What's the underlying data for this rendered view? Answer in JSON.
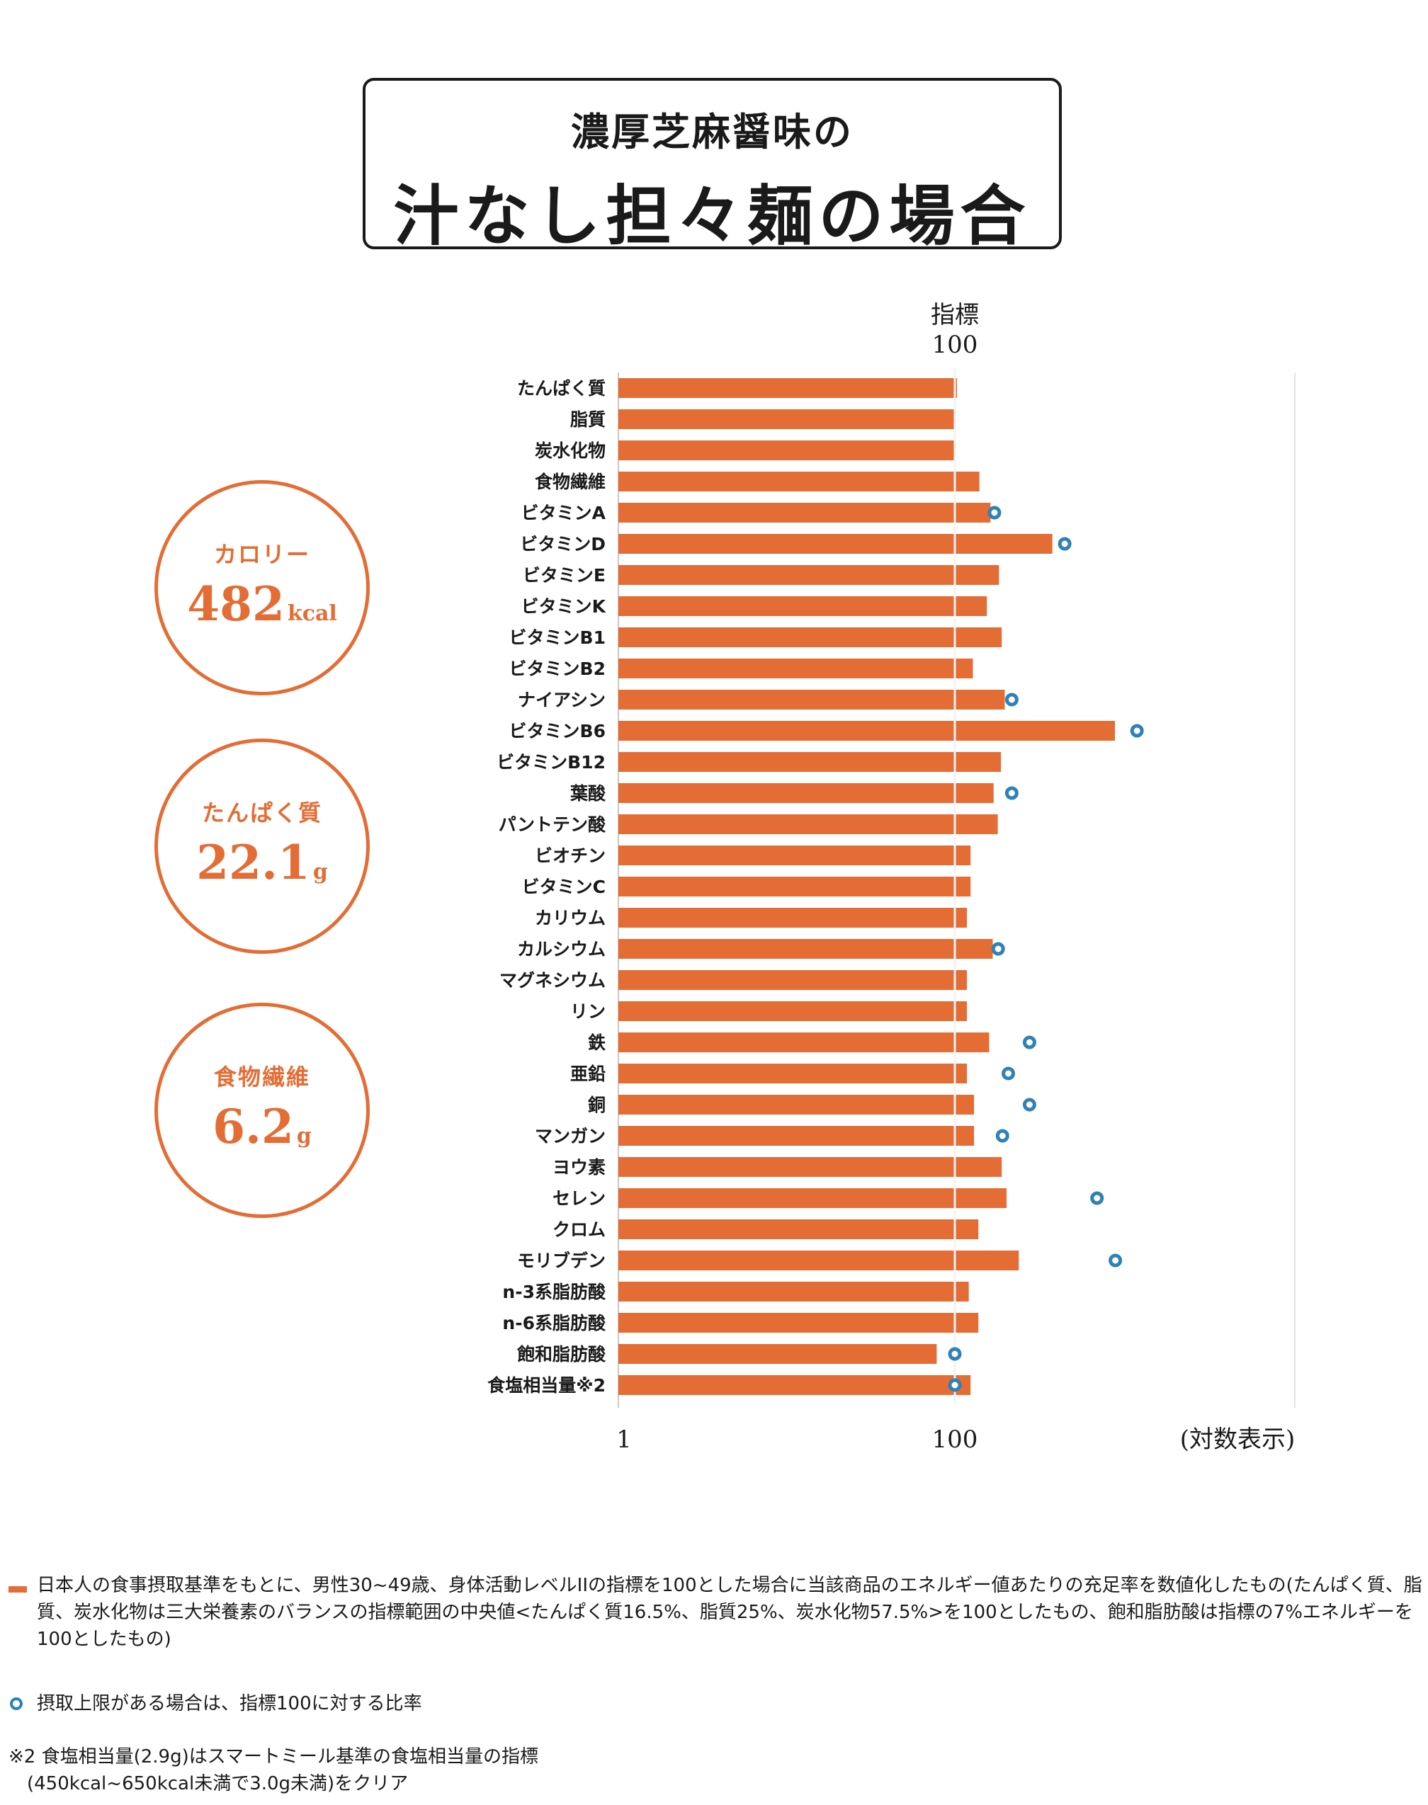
{
  "title": {
    "line1": "濃厚芝麻醤味の",
    "line2": "汁なし担々麺の場合"
  },
  "summary": [
    {
      "label": "カロリー",
      "value": "482",
      "unit": "kcal"
    },
    {
      "label": "たんぱく質",
      "value": "22.1",
      "unit": "g"
    },
    {
      "label": "食物繊維",
      "value": "6.2",
      "unit": "g"
    }
  ],
  "chart_data": {
    "type": "bar",
    "orientation": "horizontal",
    "x_scale": "log",
    "xlim": [
      1,
      1000
    ],
    "reference_label_line1": "指標",
    "reference_label_line2": "100",
    "x_tick_labels": [
      "1",
      "100"
    ],
    "x_scale_note": "(対数表示)",
    "grid": false,
    "bar_color": "#e36d35",
    "marker_color": "#2f82b3",
    "categories": [
      "たんぱく質",
      "脂質",
      "炭水化物",
      "食物繊維",
      "ビタミンA",
      "ビタミンD",
      "ビタミンE",
      "ビタミンK",
      "ビタミンB1",
      "ビタミンB2",
      "ナイアシン",
      "ビタミンB6",
      "ビタミンB12",
      "葉酸",
      "パントテン酸",
      "ビオチン",
      "ビタミンC",
      "カリウム",
      "カルシウム",
      "マグネシウム",
      "リン",
      "鉄",
      "亜鉛",
      "銅",
      "マンガン",
      "ヨウ素",
      "セレン",
      "クロム",
      "モリブデン",
      "n-3系脂肪酸",
      "n-6系脂肪酸",
      "飽和脂肪酸",
      "食塩相当量※2"
    ],
    "series": [
      {
        "values": [
          103,
          100,
          100,
          140,
          163,
          380,
          183,
          155,
          190,
          128,
          198,
          895,
          188,
          170,
          180,
          124,
          124,
          118,
          168,
          118,
          118,
          160,
          118,
          130,
          130,
          190,
          203,
          138,
          240,
          121,
          138,
          78,
          124
        ]
      },
      {
        "values": [
          null,
          null,
          null,
          null,
          172,
          450,
          null,
          null,
          null,
          null,
          218,
          1210,
          null,
          218,
          null,
          null,
          null,
          null,
          181,
          null,
          null,
          278,
          208,
          278,
          192,
          null,
          700,
          null,
          900,
          null,
          null,
          100,
          100
        ]
      }
    ]
  },
  "notes": {
    "note1": "日本人の食事摂取基準をもとに、男性30~49歳、身体活動レベルIIの指標を100とした場合に当該商品のエネルギー値あたりの充足率を数値化したもの(たんぱく質、脂質、炭水化物は三大栄養素のバランスの指標範囲の中央値<たんぱく質16.5%、脂質25%、炭水化物57.5%>を100としたもの、飽和脂肪酸は指標の7%エネルギーを100としたもの)",
    "note2": "摂取上限がある場合は、指標100に対する比率",
    "note3_line1": "※2 食塩相当量(2.9g)はスマートミール基準の食塩相当量の指標",
    "note3_line2": "　(450kcal~650kcal未満で3.0g未満)をクリア"
  }
}
